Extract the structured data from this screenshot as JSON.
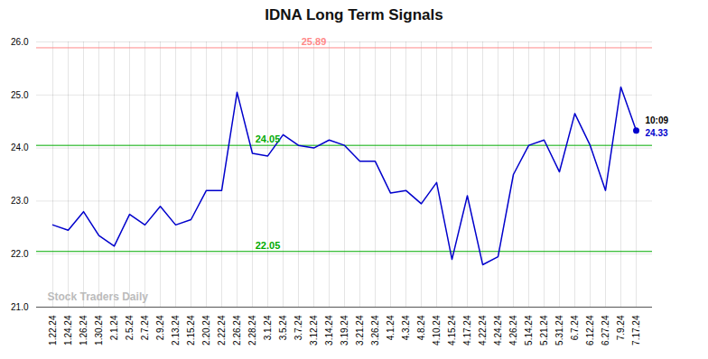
{
  "chart_data": {
    "type": "line",
    "title": "IDNA Long Term Signals",
    "categories": [
      "1.22.24",
      "1.24.24",
      "1.26.24",
      "1.30.24",
      "2.1.24",
      "2.5.24",
      "2.7.24",
      "2.9.24",
      "2.13.24",
      "2.15.24",
      "2.20.24",
      "2.22.24",
      "2.26.24",
      "2.28.24",
      "3.1.24",
      "3.5.24",
      "3.7.24",
      "3.12.24",
      "3.14.24",
      "3.19.24",
      "3.21.24",
      "3.26.24",
      "4.1.24",
      "4.3.24",
      "4.8.24",
      "4.10.24",
      "4.15.24",
      "4.17.24",
      "4.22.24",
      "4.24.24",
      "4.26.24",
      "5.14.24",
      "5.21.24",
      "5.31.24",
      "6.7.24",
      "6.12.24",
      "6.27.24",
      "7.9.24",
      "7.17.24"
    ],
    "values": [
      22.55,
      22.45,
      22.8,
      22.35,
      22.15,
      22.75,
      22.55,
      22.9,
      22.55,
      22.65,
      23.2,
      23.2,
      25.05,
      23.9,
      23.85,
      24.25,
      24.05,
      24.0,
      24.15,
      24.05,
      23.75,
      23.75,
      23.15,
      23.2,
      22.95,
      23.35,
      21.9,
      23.1,
      21.8,
      21.95,
      23.5,
      24.05,
      24.15,
      23.55,
      24.65,
      24.05,
      23.2,
      25.15,
      24.33
    ],
    "color": "#0000cc",
    "hlines": [
      {
        "value": 25.89,
        "label": "25.89",
        "color": "#ff8888"
      },
      {
        "value": 24.05,
        "label": "24.05",
        "color": "#00aa00"
      },
      {
        "value": 22.05,
        "label": "22.05",
        "color": "#00aa00"
      }
    ],
    "last_point": {
      "label": "10:09",
      "value": 24.33,
      "value_label": "24.33"
    },
    "watermark": "Stock Traders Daily",
    "ylim": [
      21.0,
      26.0
    ],
    "yticks": [
      21,
      22,
      23,
      24,
      25,
      26
    ],
    "grid": true
  }
}
